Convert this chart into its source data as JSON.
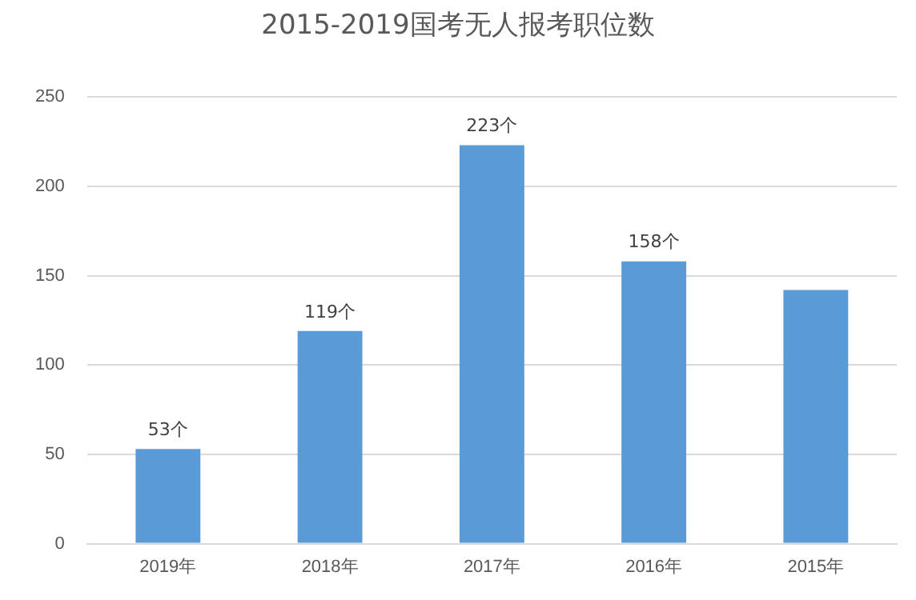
{
  "chart_data": {
    "type": "bar",
    "title": "2015-2019国考无人报考职位数",
    "categories": [
      "2019年",
      "2018年",
      "2017年",
      "2016年",
      "2015年"
    ],
    "values": [
      53,
      119,
      223,
      158,
      142
    ],
    "color": "#5b9bd5",
    "value_labels": [
      "53个",
      "119个",
      "223个",
      "158个",
      null
    ],
    "ylim": [
      0,
      250
    ],
    "yticks": [
      0,
      50,
      100,
      150,
      200,
      250
    ],
    "grid": "y",
    "legend": false
  }
}
